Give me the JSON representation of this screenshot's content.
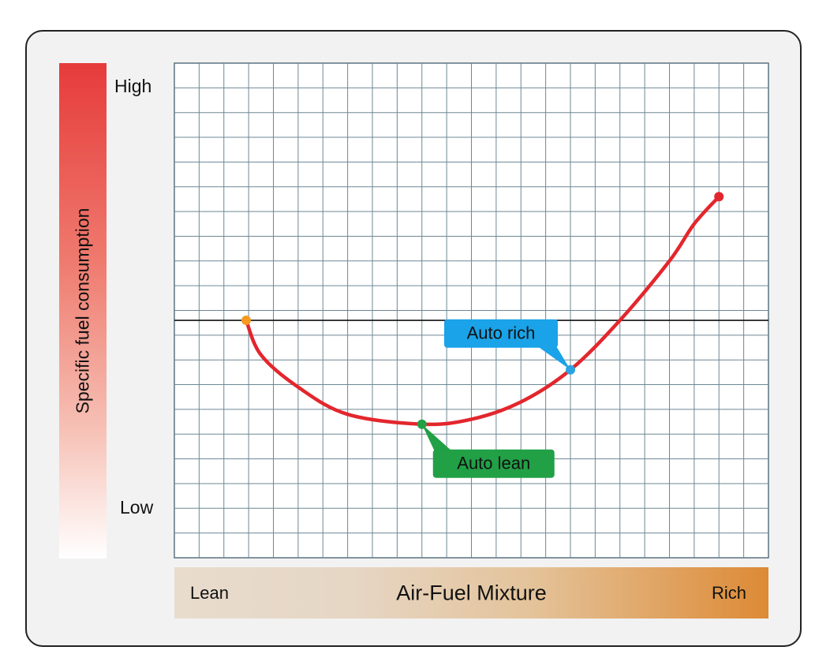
{
  "chart_data": {
    "type": "line",
    "xlabel": "Air-Fuel Mixture",
    "ylabel": "Specific fuel consumption",
    "x_tick_labels": [
      "Lean",
      "Rich"
    ],
    "y_tick_labels": [
      "High",
      "Low"
    ],
    "grid": true,
    "xlim": [
      0,
      24
    ],
    "ylim": [
      0,
      20
    ],
    "reference_line_y": 9.6,
    "series": [
      {
        "color": "#e3262d",
        "points": [
          {
            "x": 2.9,
            "y": 9.6
          },
          {
            "x": 3.5,
            "y": 8.2
          },
          {
            "x": 5.0,
            "y": 6.9
          },
          {
            "x": 7.0,
            "y": 5.8
          },
          {
            "x": 10.0,
            "y": 5.4
          },
          {
            "x": 12.0,
            "y": 5.6
          },
          {
            "x": 14.0,
            "y": 6.3
          },
          {
            "x": 16.0,
            "y": 7.6
          },
          {
            "x": 18.0,
            "y": 9.6
          },
          {
            "x": 20.0,
            "y": 12.0
          },
          {
            "x": 21.0,
            "y": 13.5
          },
          {
            "x": 22.0,
            "y": 14.6
          }
        ]
      }
    ],
    "markers": [
      {
        "x": 2.9,
        "y": 9.6,
        "color": "#f39a1f"
      },
      {
        "x": 10.0,
        "y": 5.4,
        "color": "#21a046"
      },
      {
        "x": 16.0,
        "y": 7.6,
        "color": "#2ba2e0"
      },
      {
        "x": 22.0,
        "y": 14.6,
        "color": "#e3262d"
      }
    ],
    "annotations": [
      {
        "text": "Auto lean",
        "x": 10.0,
        "y": 5.4,
        "color": "#21a046"
      },
      {
        "text": "Auto rich",
        "x": 16.0,
        "y": 7.6,
        "color": "#1aa3e8"
      }
    ]
  }
}
